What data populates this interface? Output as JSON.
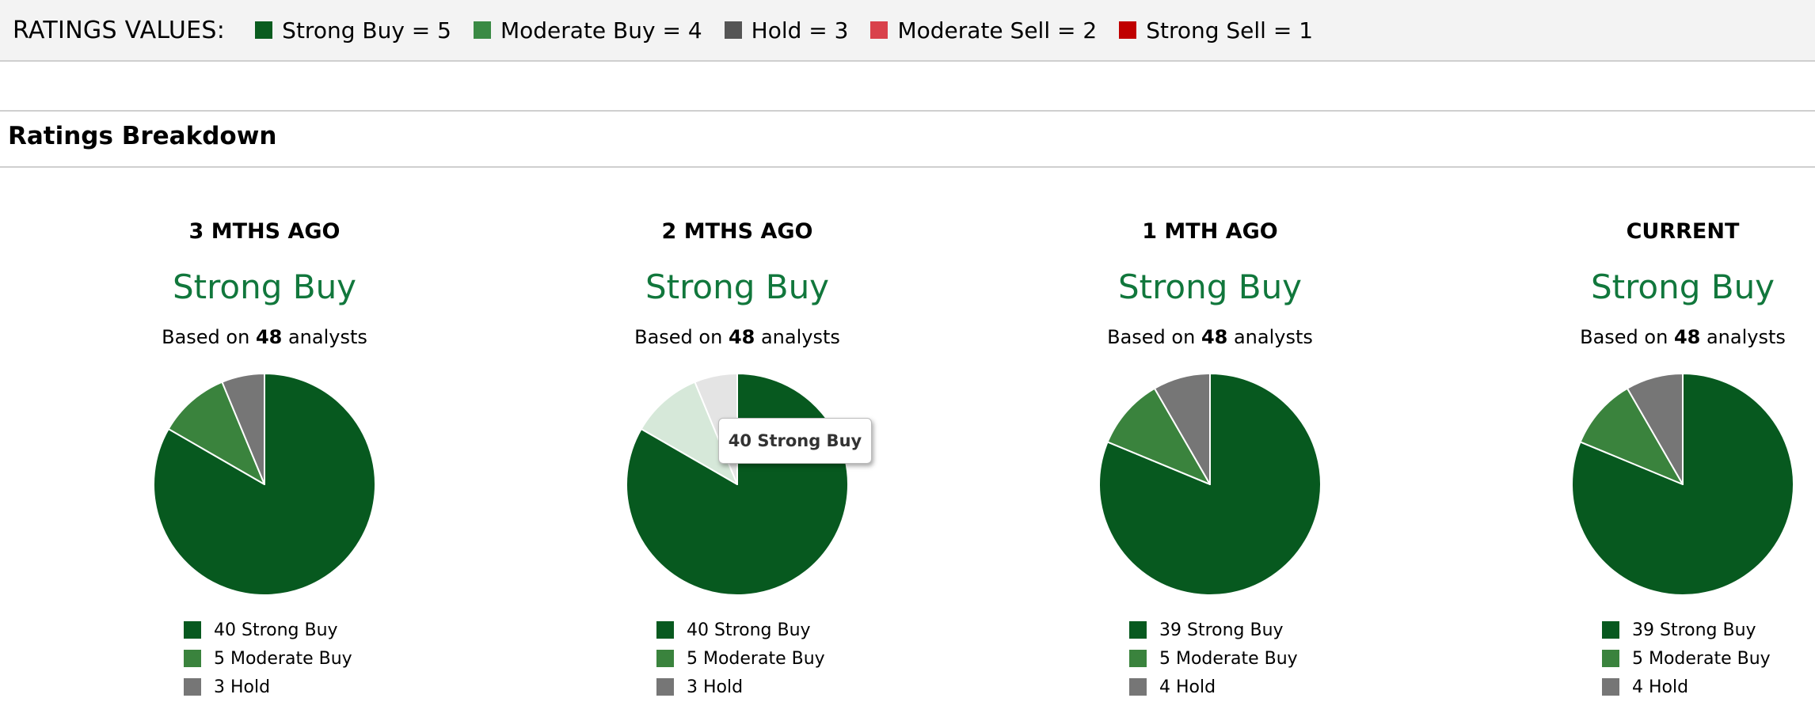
{
  "ratings_legend": {
    "title": "RATINGS VALUES:",
    "items": [
      {
        "label": "Strong Buy = 5",
        "color": "#0a5c1f"
      },
      {
        "label": "Moderate Buy = 4",
        "color": "#3a8a44"
      },
      {
        "label": "Hold = 3",
        "color": "#555555"
      },
      {
        "label": "Moderate Sell = 2",
        "color": "#d9414b"
      },
      {
        "label": "Strong Sell = 1",
        "color": "#c00000"
      }
    ]
  },
  "section_title": "Ratings Breakdown",
  "analysts_prefix": "Based on ",
  "analysts_suffix": " analysts",
  "colors": {
    "strong_buy": "#07591f",
    "moderate_buy": "#3a833d",
    "hold": "#767676",
    "consensus_text": "#11773c"
  },
  "periods": [
    {
      "label": "3 MTHS AGO",
      "consensus": "Strong Buy",
      "analyst_count": "48",
      "breakdown": [
        {
          "text": "40 Strong Buy",
          "value": 40,
          "key": "strong_buy"
        },
        {
          "text": "5 Moderate Buy",
          "value": 5,
          "key": "moderate_buy"
        },
        {
          "text": "3 Hold",
          "value": 3,
          "key": "hold"
        }
      ]
    },
    {
      "label": "2 MTHS AGO",
      "consensus": "Strong Buy",
      "analyst_count": "48",
      "hovered_slice": 0,
      "breakdown": [
        {
          "text": "40 Strong Buy",
          "value": 40,
          "key": "strong_buy"
        },
        {
          "text": "5 Moderate Buy",
          "value": 5,
          "key": "moderate_buy"
        },
        {
          "text": "3 Hold",
          "value": 3,
          "key": "hold"
        }
      ]
    },
    {
      "label": "1 MTH AGO",
      "consensus": "Strong Buy",
      "analyst_count": "48",
      "breakdown": [
        {
          "text": "39 Strong Buy",
          "value": 39,
          "key": "strong_buy"
        },
        {
          "text": "5 Moderate Buy",
          "value": 5,
          "key": "moderate_buy"
        },
        {
          "text": "4 Hold",
          "value": 4,
          "key": "hold"
        }
      ]
    },
    {
      "label": "CURRENT",
      "consensus": "Strong Buy",
      "analyst_count": "48",
      "breakdown": [
        {
          "text": "39 Strong Buy",
          "value": 39,
          "key": "strong_buy"
        },
        {
          "text": "5 Moderate Buy",
          "value": 5,
          "key": "moderate_buy"
        },
        {
          "text": "4 Hold",
          "value": 4,
          "key": "hold"
        }
      ]
    }
  ],
  "tooltip": {
    "text": "40 Strong Buy"
  }
}
